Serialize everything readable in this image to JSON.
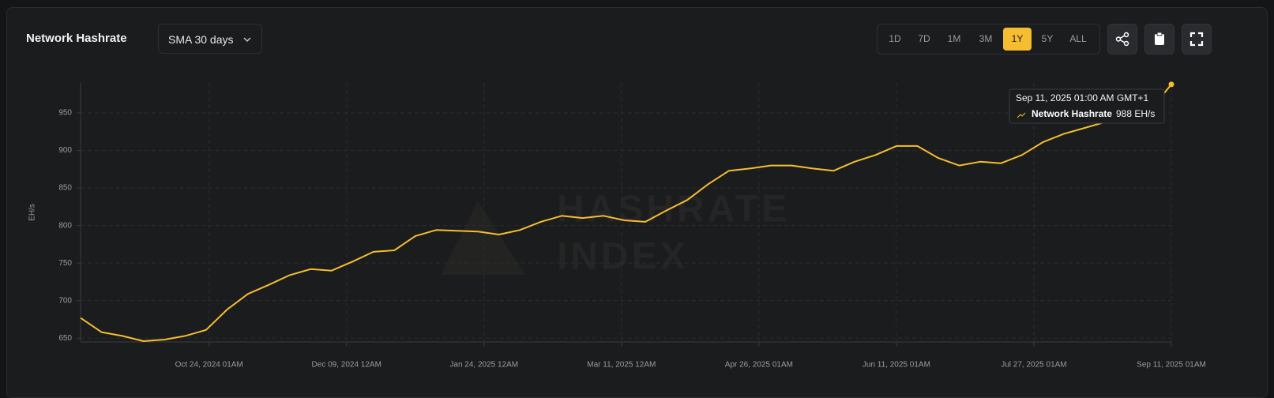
{
  "header": {
    "title": "Network Hashrate",
    "dropdown": "SMA 30 days"
  },
  "range_buttons": [
    "1D",
    "7D",
    "1M",
    "3M",
    "1Y",
    "5Y",
    "ALL"
  ],
  "active_range": "1Y",
  "chart_data": {
    "type": "line",
    "y_label": "EH/s",
    "watermark": [
      "HASHRATE",
      "INDEX"
    ],
    "x": [
      "2024-09-11",
      "2024-09-18",
      "2024-09-25",
      "2024-10-02",
      "2024-10-09",
      "2024-10-16",
      "2024-10-23",
      "2024-10-30",
      "2024-11-06",
      "2024-11-13",
      "2024-11-20",
      "2024-11-27",
      "2024-12-04",
      "2024-12-11",
      "2024-12-18",
      "2024-12-25",
      "2025-01-01",
      "2025-01-08",
      "2025-01-15",
      "2025-01-22",
      "2025-01-29",
      "2025-02-05",
      "2025-02-12",
      "2025-02-19",
      "2025-02-26",
      "2025-03-05",
      "2025-03-12",
      "2025-03-19",
      "2025-03-26",
      "2025-04-02",
      "2025-04-09",
      "2025-04-16",
      "2025-04-23",
      "2025-04-30",
      "2025-05-07",
      "2025-05-14",
      "2025-05-21",
      "2025-05-28",
      "2025-06-04",
      "2025-06-11",
      "2025-06-18",
      "2025-06-25",
      "2025-07-02",
      "2025-07-09",
      "2025-07-16",
      "2025-07-23",
      "2025-07-30",
      "2025-08-06",
      "2025-08-13",
      "2025-08-20",
      "2025-08-27",
      "2025-09-03",
      "2025-09-11"
    ],
    "series": [
      {
        "name": "Network Hashrate",
        "color": "#f5bd2f",
        "values": [
          677,
          658,
          653,
          646,
          648,
          653,
          661,
          688,
          709,
          721,
          734,
          742,
          740,
          752,
          765,
          767,
          786,
          794,
          793,
          792,
          788,
          794,
          805,
          813,
          810,
          813,
          807,
          805,
          820,
          834,
          855,
          873,
          876,
          880,
          880,
          876,
          873,
          885,
          894,
          906,
          906,
          890,
          880,
          885,
          883,
          894,
          911,
          922,
          930,
          938,
          946,
          949,
          988
        ]
      }
    ],
    "xlim": [
      "2024-09-11",
      "2025-09-11"
    ],
    "xticks": [
      {
        "value": "2024-10-24",
        "label": "Oct 24, 2024 01AM"
      },
      {
        "value": "2024-12-09",
        "label": "Dec 09, 2024 12AM"
      },
      {
        "value": "2025-01-24",
        "label": "Jan 24, 2025 12AM"
      },
      {
        "value": "2025-03-11",
        "label": "Mar 11, 2025 12AM"
      },
      {
        "value": "2025-04-26",
        "label": "Apr 26, 2025 01AM"
      },
      {
        "value": "2025-06-11",
        "label": "Jun 11, 2025 01AM"
      },
      {
        "value": "2025-07-27",
        "label": "Jul 27, 2025 01AM"
      },
      {
        "value": "2025-09-11",
        "label": "Sep 11, 2025 01AM"
      }
    ],
    "ylim": [
      645,
      990
    ],
    "yticks": [
      650,
      700,
      750,
      800,
      850,
      900,
      950
    ],
    "grid": true,
    "tooltip": {
      "date": "Sep 11, 2025 01:00 AM GMT+1",
      "series": "Network Hashrate",
      "value": "988 EH/s"
    }
  }
}
